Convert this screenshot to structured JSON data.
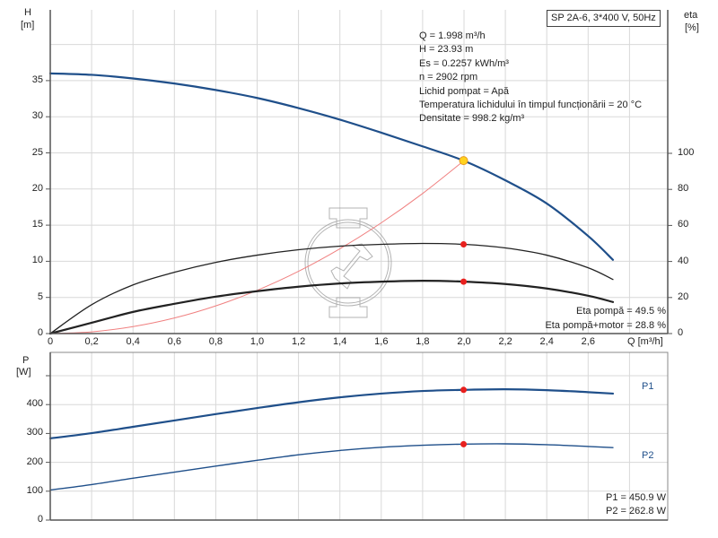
{
  "chart_data": [
    {
      "type": "line",
      "title": "SP 2A-6, 3*400 V, 50Hz",
      "xlabel": "Q [m³/h]",
      "ylabel": "H [m]",
      "ylabel_right": "eta [%]",
      "xlim": [
        0,
        2.9
      ],
      "ylim": [
        0,
        45
      ],
      "ylim_right": [
        0,
        100
      ],
      "x_ticks": [
        "0",
        "0,2",
        "0,4",
        "0,6",
        "0,8",
        "1,0",
        "1,2",
        "1,4",
        "1,6",
        "1,8",
        "2,0",
        "2,2",
        "2,4",
        "2,6"
      ],
      "y_ticks": [
        "0",
        "5",
        "10",
        "15",
        "20",
        "25",
        "30",
        "35"
      ],
      "y_ticks_right": [
        "0",
        "20",
        "40",
        "60",
        "80",
        "100"
      ],
      "grid": true,
      "x": [
        0,
        0.2,
        0.4,
        0.6,
        0.8,
        1.0,
        1.2,
        1.4,
        1.6,
        1.8,
        2.0,
        2.2,
        2.4,
        2.6,
        2.72
      ],
      "series": [
        {
          "name": "H",
          "axis": "left",
          "color": "#1f4f8a",
          "values": [
            36.0,
            35.8,
            35.3,
            34.6,
            33.7,
            32.6,
            31.2,
            29.6,
            27.8,
            25.9,
            23.9,
            21.2,
            18.0,
            13.5,
            10.2
          ]
        },
        {
          "name": "Eta pompă",
          "axis": "right",
          "color": "#222222",
          "values": [
            0,
            16,
            27,
            34,
            39.5,
            43.5,
            46.5,
            48.5,
            49.5,
            50,
            49.5,
            47.5,
            43.5,
            36.5,
            30
          ]
        },
        {
          "name": "Eta pompă+motor",
          "axis": "right",
          "color": "#000000",
          "values": [
            0,
            6,
            12,
            16.5,
            20.5,
            23.5,
            26,
            27.8,
            28.8,
            29.3,
            28.8,
            27.5,
            25,
            21,
            17.5
          ]
        },
        {
          "name": "System curve",
          "axis": "left",
          "color": "#f08080",
          "values": [
            0,
            0.24,
            0.96,
            2.15,
            3.83,
            5.98,
            8.61,
            11.73,
            15.32,
            19.38,
            23.93
          ]
        }
      ],
      "operating_point": {
        "Q": 1.998,
        "H": 23.93,
        "eta_pump": 49.5,
        "eta_total": 28.8
      }
    },
    {
      "type": "line",
      "xlabel": "Q [m³/h]",
      "ylabel": "P [W]",
      "xlim": [
        0,
        2.9
      ],
      "ylim": [
        0,
        560
      ],
      "y_ticks": [
        "0",
        "100",
        "200",
        "300",
        "400"
      ],
      "grid": true,
      "x": [
        0,
        0.2,
        0.4,
        0.6,
        0.8,
        1.0,
        1.2,
        1.4,
        1.6,
        1.8,
        2.0,
        2.2,
        2.4,
        2.6,
        2.72
      ],
      "series": [
        {
          "name": "P1",
          "color": "#1f4f8a",
          "values": [
            283,
            301,
            323,
            345,
            367,
            388,
            408,
            425,
            438,
            447,
            451,
            453,
            450,
            443,
            438
          ]
        },
        {
          "name": "P2",
          "color": "#1f4f8a",
          "values": [
            104,
            123,
            145,
            166,
            187,
            207,
            226,
            241,
            252,
            259,
            263,
            264,
            261,
            255,
            251
          ]
        }
      ],
      "operating_point": {
        "Q": 1.998,
        "P1": 450.9,
        "P2": 262.8
      }
    }
  ],
  "top": {
    "model": "SP 2A-6, 3*400 V, 50Hz",
    "y_label": "H",
    "y_unit": "[m]",
    "y_right_label": "eta",
    "y_right_unit": "[%]",
    "x_label": "Q [m³/h]",
    "info": [
      "Q = 1.998 m³/h",
      "H = 23.93 m",
      "Es = 0.2257 kWh/m³",
      "n = 2902 rpm",
      "Lichid pompat = Apă",
      "Temperatura lichidului în timpul funcționării = 20 °C",
      "Densitate = 998.2 kg/m³"
    ],
    "eta_pump": "Eta pompă = 49.5 %",
    "eta_total": "Eta pompă+motor = 28.8 %"
  },
  "bottom": {
    "y_label": "P",
    "y_unit": "[W]",
    "p1_label": "P1",
    "p2_label": "P2",
    "p1_value": "P1 = 450.9 W",
    "p2_value": "P2 = 262.8 W"
  },
  "colors": {
    "head": "#1f4f8a",
    "power": "#1f4f8a",
    "eta": "#222222",
    "system": "#f08080",
    "op_point": "#e8201e",
    "duty_point": "#ffd21f",
    "grid": "#d8d8d8",
    "axis": "#555555"
  }
}
